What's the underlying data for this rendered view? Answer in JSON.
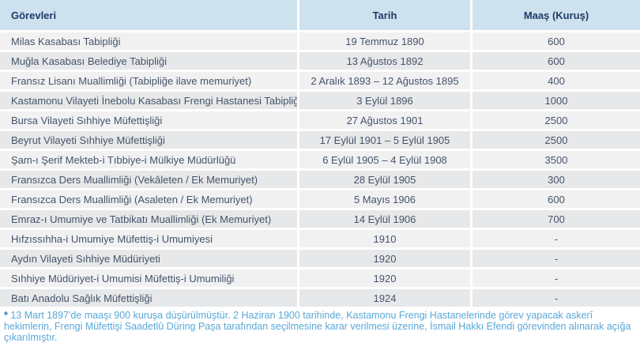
{
  "chart_data": {
    "type": "table",
    "columns": [
      "Görevleri",
      "Tarih",
      "Maaş (Kuruş)"
    ],
    "rows": [
      {
        "gorev": "Milas Kasabası Tabipliği",
        "tarih": "19 Temmuz 1890",
        "maas": "600"
      },
      {
        "gorev": "Muğla Kasabası Belediye Tabipliği",
        "tarih": "13 Ağustos 1892",
        "maas": "600"
      },
      {
        "gorev": "Fransız Lisanı Muallimliği (Tabipliğe ilave memuriyet)",
        "tarih": "2 Aralık 1893 – 12 Ağustos 1895",
        "maas": "400"
      },
      {
        "gorev": "Kastamonu Vilayeti İnebolu Kasabası Frengi Hastanesi Tabipliği",
        "marker": "▯",
        "tarih": "3 Eylül 1896",
        "maas": "1000"
      },
      {
        "gorev": "Bursa Vilayeti Sıhhiye Müfettişliği",
        "tarih": "27 Ağustos 1901",
        "maas": "2500"
      },
      {
        "gorev": "Beyrut Vilayeti Sıhhiye Müfettişliği",
        "tarih": "17 Eylül 1901 – 5 Eylül 1905",
        "maas": "2500"
      },
      {
        "gorev": "Şam-ı Şerif Mekteb-i Tıbbiye-i Mülkiye Müdürlüğü",
        "tarih": "6 Eylül 1905 – 4 Eylül 1908",
        "maas": "3500"
      },
      {
        "gorev": "Fransızca Ders Muallimliği (Vekâleten / Ek Memuriyet)",
        "tarih": "28 Eylül 1905",
        "maas": "300"
      },
      {
        "gorev": "Fransızca Ders Muallimliği (Asaleten / Ek Memuriyet)",
        "tarih": "5 Mayıs 1906",
        "maas": "600"
      },
      {
        "gorev": "Emraz-ı Umumiye ve Tatbikatı Muallimliği (Ek Memuriyet)",
        "tarih": "14 Eylül 1906",
        "maas": "700"
      },
      {
        "gorev": "Hıfzıssıhha-i Umumiye Müfettiş-i Umumiyesi",
        "tarih": "1910",
        "maas": "-"
      },
      {
        "gorev": "Aydın Vilayeti Sıhhiye Müdüriyeti",
        "tarih": "1920",
        "maas": "-"
      },
      {
        "gorev": "Sıhhiye Müdüriyet-i Umumisi Müfettiş-i Umumiliği",
        "tarih": "1920",
        "maas": "-"
      },
      {
        "gorev": "Batı Anadolu Sağlık Müfettişliği",
        "tarih": "1924",
        "maas": "-"
      }
    ]
  },
  "footnote": {
    "marker": "*",
    "text": " 13 Mart 1897'de maaşı 900 kuruşa düşürülmüştür. 2 Haziran 1900 tarihinde, Kastamonu Frengi Hastanelerinde görev yapacak askerî hekimlerin, Frengi Müfettişi Saadetlû Düring Paşa tarafından seçilmesine karar verilmesi üzerine, İsmail Hakkı Efendi görevinden alınarak açığa çıkarılmıştır."
  },
  "colors": {
    "header_bg": "#cee1ee",
    "header_text": "#1f3b66",
    "row_odd_bg": "#f1f1f2",
    "row_even_bg": "#e7e8e9",
    "body_text": "#44546a",
    "footnote_text": "#58a8d8",
    "footnote_marker": "#2e75b6",
    "gap": "#ffffff"
  }
}
